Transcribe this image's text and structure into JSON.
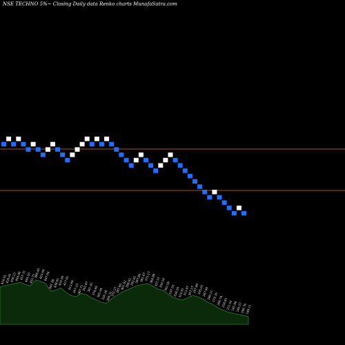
{
  "header": {
    "title": "NSE TECHNO 5%~  Closing Daily data  Renko  charts MunafaSutra.com"
  },
  "colors": {
    "background": "#000000",
    "up_brick": "#ffffff",
    "down_brick": "#1e6fff",
    "reference_line": "#a5561b",
    "volume_fill": "#0a2a0a",
    "volume_stroke": "#2e7d32",
    "label_text": "#ffffff"
  },
  "chart_data": {
    "type": "renko",
    "title": "",
    "reference_levels": [
      0.355,
      0.145
    ],
    "bricks": [
      {
        "dir": "down",
        "level": 20
      },
      {
        "dir": "up",
        "level": 21
      },
      {
        "dir": "down",
        "level": 20
      },
      {
        "dir": "up",
        "level": 21
      },
      {
        "dir": "down",
        "level": 20
      },
      {
        "dir": "down",
        "level": 19
      },
      {
        "dir": "up",
        "level": 20
      },
      {
        "dir": "down",
        "level": 19
      },
      {
        "dir": "down",
        "level": 18
      },
      {
        "dir": "up",
        "level": 19
      },
      {
        "dir": "up",
        "level": 20
      },
      {
        "dir": "down",
        "level": 19
      },
      {
        "dir": "down",
        "level": 18
      },
      {
        "dir": "down",
        "level": 17
      },
      {
        "dir": "up",
        "level": 18
      },
      {
        "dir": "up",
        "level": 19
      },
      {
        "dir": "up",
        "level": 20
      },
      {
        "dir": "up",
        "level": 21
      },
      {
        "dir": "down",
        "level": 20
      },
      {
        "dir": "up",
        "level": 21
      },
      {
        "dir": "down",
        "level": 20
      },
      {
        "dir": "up",
        "level": 21
      },
      {
        "dir": "down",
        "level": 20
      },
      {
        "dir": "down",
        "level": 19
      },
      {
        "dir": "down",
        "level": 18
      },
      {
        "dir": "down",
        "level": 17
      },
      {
        "dir": "down",
        "level": 16
      },
      {
        "dir": "up",
        "level": 17
      },
      {
        "dir": "up",
        "level": 18
      },
      {
        "dir": "down",
        "level": 17
      },
      {
        "dir": "down",
        "level": 16
      },
      {
        "dir": "down",
        "level": 15
      },
      {
        "dir": "up",
        "level": 16
      },
      {
        "dir": "up",
        "level": 17
      },
      {
        "dir": "up",
        "level": 18
      },
      {
        "dir": "down",
        "level": 17
      },
      {
        "dir": "down",
        "level": 16
      },
      {
        "dir": "down",
        "level": 15
      },
      {
        "dir": "down",
        "level": 14
      },
      {
        "dir": "down",
        "level": 13
      },
      {
        "dir": "down",
        "level": 12
      },
      {
        "dir": "down",
        "level": 11
      },
      {
        "dir": "down",
        "level": 10
      },
      {
        "dir": "up",
        "level": 11
      },
      {
        "dir": "down",
        "level": 10
      },
      {
        "dir": "down",
        "level": 9
      },
      {
        "dir": "down",
        "level": 8
      },
      {
        "dir": "down",
        "level": 7
      },
      {
        "dir": "up",
        "level": 8
      },
      {
        "dir": "down",
        "level": 7
      }
    ],
    "volume_profile": [
      0.68,
      0.7,
      0.72,
      0.74,
      0.76,
      0.72,
      0.7,
      0.8,
      0.78,
      0.74,
      0.6,
      0.62,
      0.66,
      0.58,
      0.52,
      0.5,
      0.56,
      0.54,
      0.48,
      0.44,
      0.4,
      0.38,
      0.46,
      0.52,
      0.58,
      0.62,
      0.66,
      0.7,
      0.72,
      0.74,
      0.7,
      0.64,
      0.62,
      0.56,
      0.5,
      0.46,
      0.44,
      0.48,
      0.52,
      0.5,
      0.46,
      0.4,
      0.36,
      0.3,
      0.26,
      0.22,
      0.2,
      0.18,
      0.16,
      0.14
    ],
    "brick_labels": [
      "418.95",
      "428.05",
      "436.23",
      "444.88",
      "457.31",
      "465.50",
      "455.71",
      "460.45",
      "453.08",
      "447.84",
      "441.38",
      "438.81",
      "429.99",
      "417.61",
      "412.69",
      "397.23",
      "387.71",
      "393.67",
      "381.42",
      "374.89",
      "365.04",
      "356.26",
      "368.31",
      "375.27",
      "387.69",
      "401.92",
      "398.82",
      "392.62",
      "387.80",
      "381.67",
      "373.17",
      "364.88",
      "357.57",
      "350.54",
      "342.56",
      "337.33",
      "328.50",
      "319.81",
      "313.47",
      "307.27",
      "297.89",
      "295.01",
      "287.60",
      "280.11",
      "273.35",
      "266.74",
      "258.85",
      "251.01",
      "245.96",
      "240.57",
      "246.70",
      "248.11"
    ]
  }
}
